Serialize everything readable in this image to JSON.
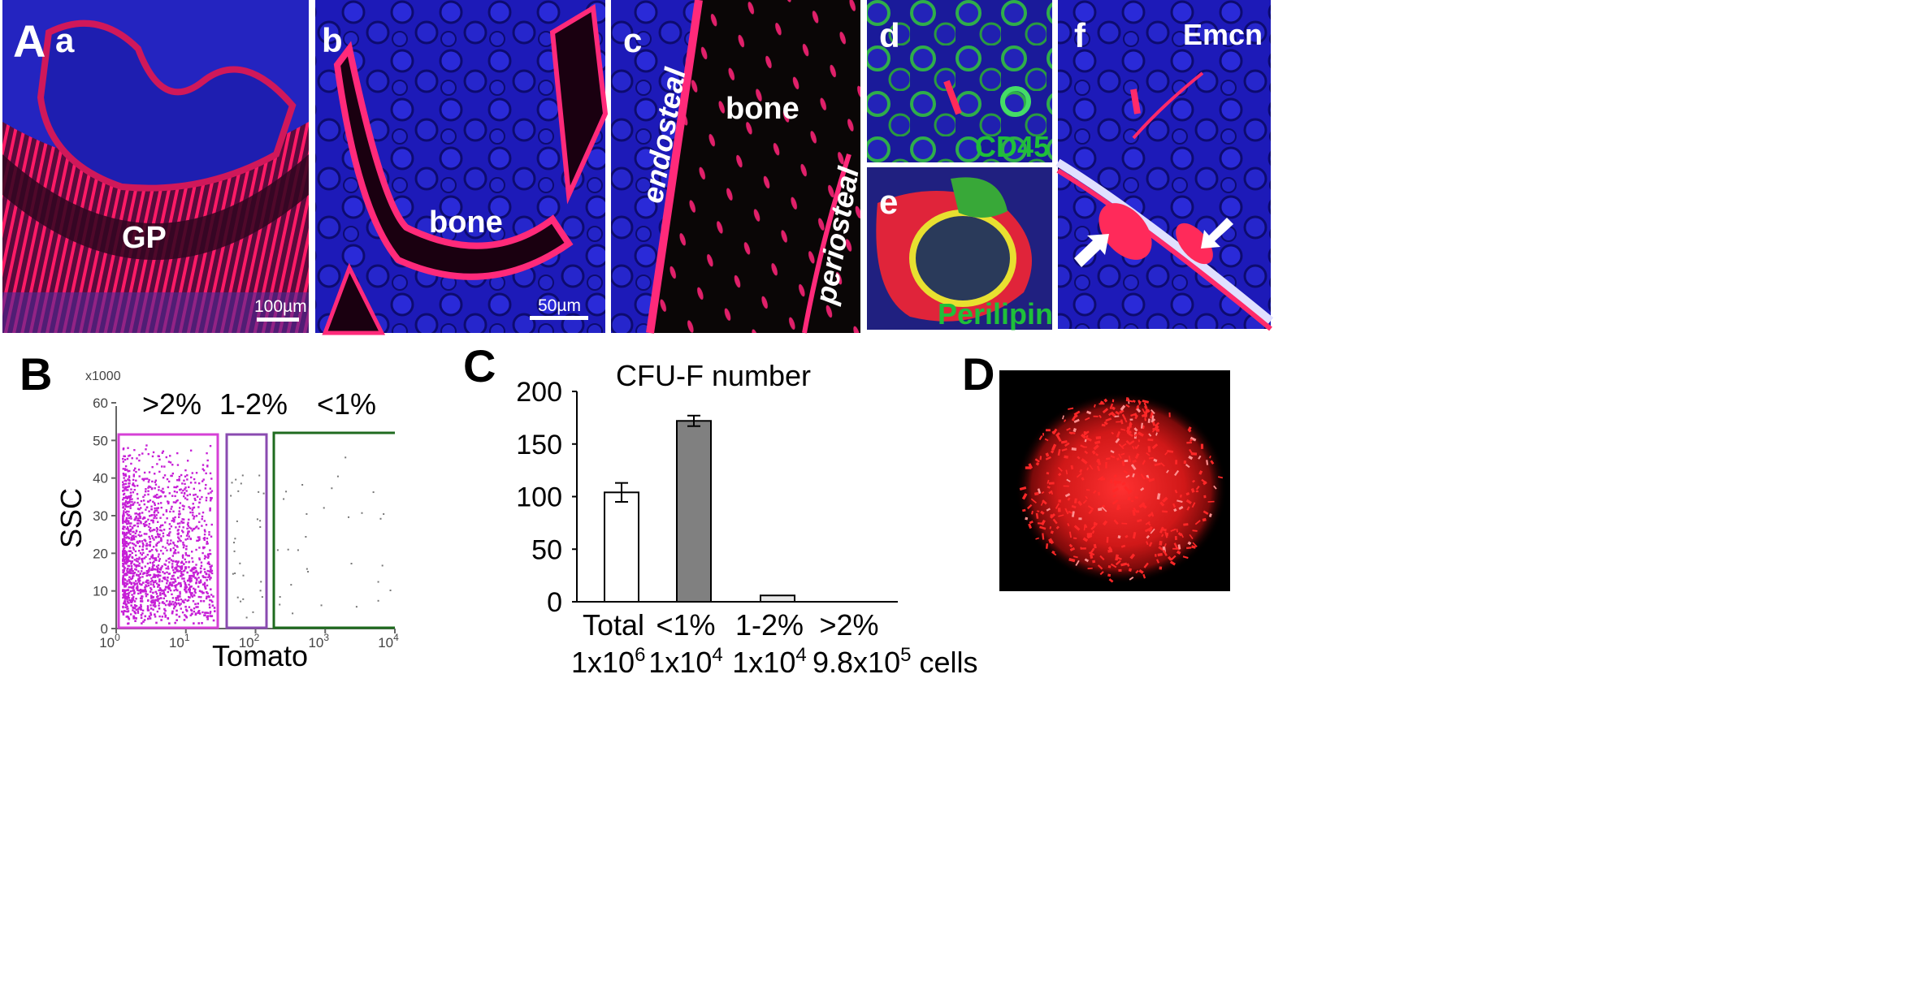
{
  "panel_A": {
    "letter": "A",
    "a": {
      "label": "a",
      "text": "GP",
      "scale": "100µm"
    },
    "b": {
      "label": "b",
      "text": "bone",
      "scale": "50µm"
    },
    "c": {
      "label": "c",
      "bone": "bone",
      "endosteal": "endosteal",
      "periosteal": "periosteal"
    },
    "d": {
      "label": "d",
      "marker": "CD45"
    },
    "e": {
      "label": "e",
      "marker": "Perilipin"
    },
    "f": {
      "label": "f",
      "marker": "Emcn"
    }
  },
  "panel_B": {
    "letter": "B",
    "x_multiplier": "x1000",
    "gates": [
      ">2%",
      "1-2%",
      "<1%"
    ],
    "ylabel": "SSC",
    "xlabel": "Tomato",
    "yticks": [
      "0",
      "10",
      "20",
      "30",
      "40",
      "50",
      "60"
    ],
    "xticks": [
      {
        "base": "10",
        "exp": "0"
      },
      {
        "base": "10",
        "exp": "1"
      },
      {
        "base": "10",
        "exp": "2"
      },
      {
        "base": "10",
        "exp": "3"
      },
      {
        "base": "10",
        "exp": "4"
      }
    ],
    "colors": {
      "gate1": "#d640d6",
      "gate2": "#8a4bb0",
      "gate3": "#1f6b1f",
      "dots": "#c61fd6"
    }
  },
  "panel_C": {
    "letter": "C"
  },
  "panel_D": {
    "letter": "D"
  },
  "chart_data": {
    "type": "bar",
    "title": "CFU-F number",
    "xlabel": "",
    "ylabel": "",
    "ylim": [
      0,
      200
    ],
    "yticks": [
      "0",
      "50",
      "100",
      "150",
      "200"
    ],
    "categories": [
      "Total",
      "<1%",
      "1-2%",
      ">2%"
    ],
    "sublabels": [
      {
        "base": "1x10",
        "exp": "6",
        "suffix": ""
      },
      {
        "base": "1x10",
        "exp": "4",
        "suffix": ""
      },
      {
        "base": "1x10",
        "exp": "4",
        "suffix": ""
      },
      {
        "base": "9.8x10",
        "exp": "5",
        "suffix": " cells"
      }
    ],
    "values": [
      104,
      172,
      6,
      0
    ],
    "errors": [
      9,
      5,
      0,
      0
    ],
    "fills": [
      "#ffffff",
      "#808080",
      "#e8e8e8",
      "#ffffff"
    ],
    "grid": false
  }
}
